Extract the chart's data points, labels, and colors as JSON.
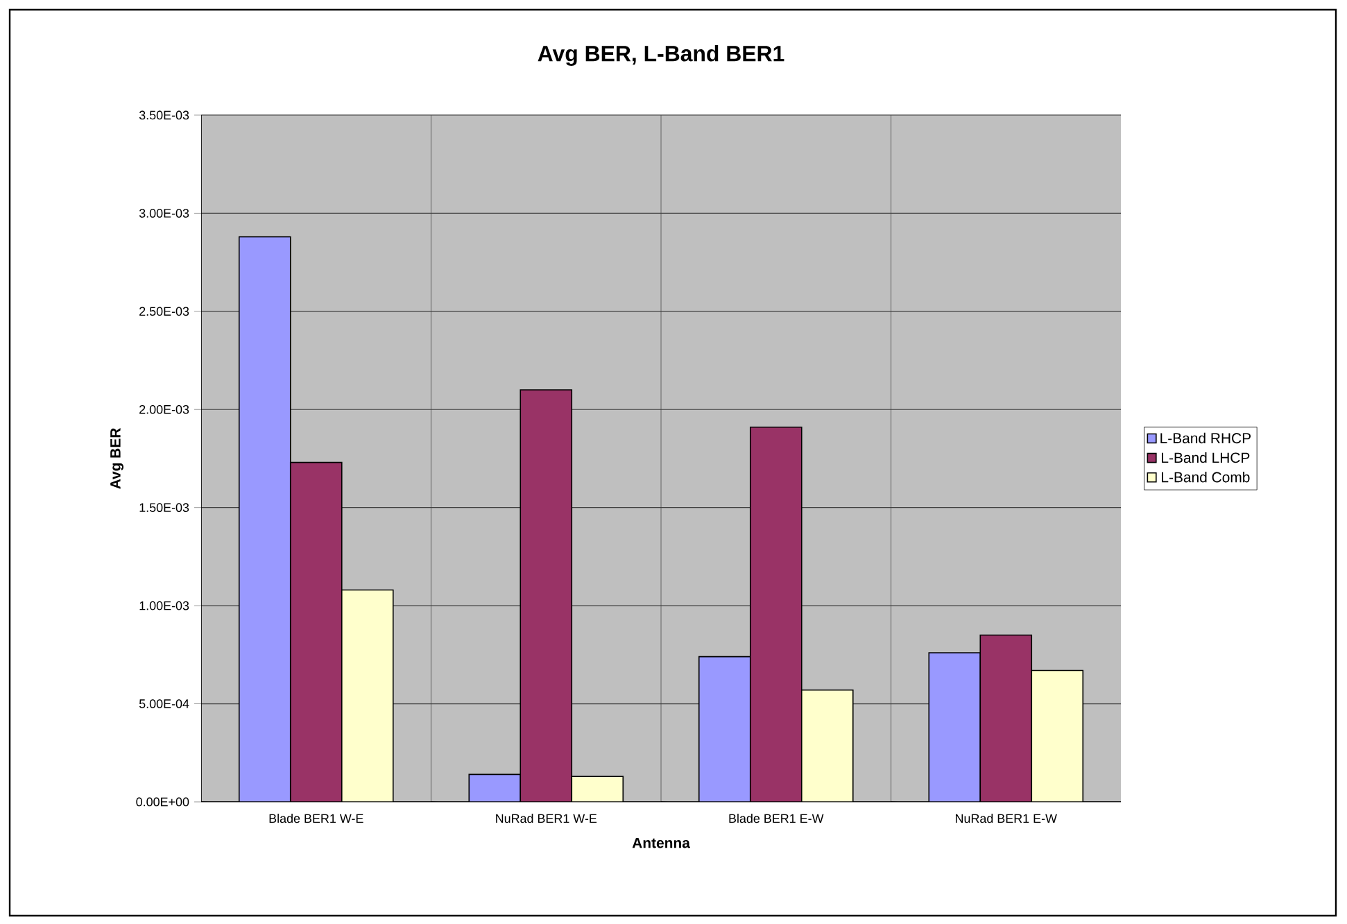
{
  "chart_data": {
    "type": "bar",
    "title": "Avg BER, L-Band BER1",
    "xlabel": "Antenna",
    "ylabel": "Avg BER",
    "categories": [
      "Blade BER1 W-E",
      "NuRad BER1 W-E",
      "Blade BER1 E-W",
      "NuRad BER1 E-W"
    ],
    "series": [
      {
        "name": "L-Band RHCP",
        "color": "#9999ff",
        "values": [
          0.00288,
          0.00014,
          0.00074,
          0.00076
        ]
      },
      {
        "name": "L-Band LHCP",
        "color": "#993366",
        "values": [
          0.00173,
          0.0021,
          0.00191,
          0.00085
        ]
      },
      {
        "name": "L-Band Comb",
        "color": "#ffffcc",
        "values": [
          0.00108,
          0.00013,
          0.00057,
          0.00067
        ]
      }
    ],
    "ylim": [
      0,
      0.0035
    ],
    "yticks": [
      {
        "value": 0,
        "label": "0.00E+00"
      },
      {
        "value": 0.0005,
        "label": "5.00E-04"
      },
      {
        "value": 0.001,
        "label": "1.00E-03"
      },
      {
        "value": 0.0015,
        "label": "1.50E-03"
      },
      {
        "value": 0.002,
        "label": "2.00E-03"
      },
      {
        "value": 0.0025,
        "label": "2.50E-03"
      },
      {
        "value": 0.003,
        "label": "3.00E-03"
      },
      {
        "value": 0.0035,
        "label": "3.50E-03"
      }
    ],
    "grid": true,
    "legend": "right"
  }
}
